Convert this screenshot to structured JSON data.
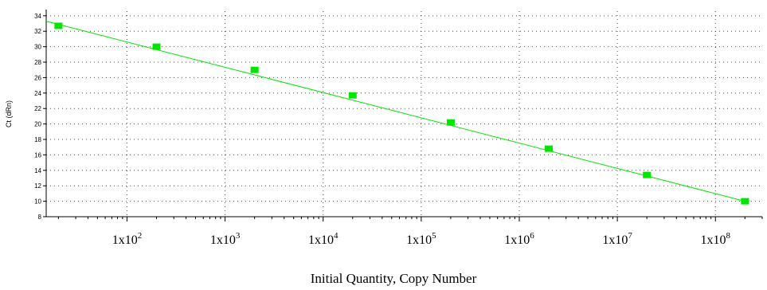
{
  "chart_data": {
    "type": "scatter",
    "xlabel": "Initial Quantity, Copy Number",
    "ylabel": "Ct (dRn)",
    "xscale": "log",
    "xlim": [
      15,
      300000000
    ],
    "ylim": [
      8,
      34.6
    ],
    "grid": true,
    "y_ticks": [
      8,
      10,
      12,
      14,
      16,
      18,
      20,
      22,
      24,
      26,
      28,
      30,
      32,
      34
    ],
    "x_tick_labels": [
      {
        "value": 100,
        "base": "1x10",
        "exp": "2"
      },
      {
        "value": 1000,
        "base": "1x10",
        "exp": "3"
      },
      {
        "value": 10000,
        "base": "1x10",
        "exp": "4"
      },
      {
        "value": 100000,
        "base": "1x10",
        "exp": "5"
      },
      {
        "value": 1000000,
        "base": "1x10",
        "exp": "6"
      },
      {
        "value": 10000000,
        "base": "1x10",
        "exp": "7"
      },
      {
        "value": 100000000,
        "base": "1x10",
        "exp": "8"
      }
    ],
    "series": [
      {
        "x": [
          20,
          200,
          2000,
          20000,
          200000,
          2000000,
          20000000,
          200000000
        ],
        "y": [
          32.7,
          30.0,
          27.0,
          23.7,
          20.2,
          16.8,
          13.4,
          10.0
        ],
        "color": "#00e600"
      }
    ],
    "fit_line": {
      "x": [
        15,
        200000000
      ],
      "y": [
        33.3,
        10.0
      ],
      "color": "#00e600"
    }
  }
}
